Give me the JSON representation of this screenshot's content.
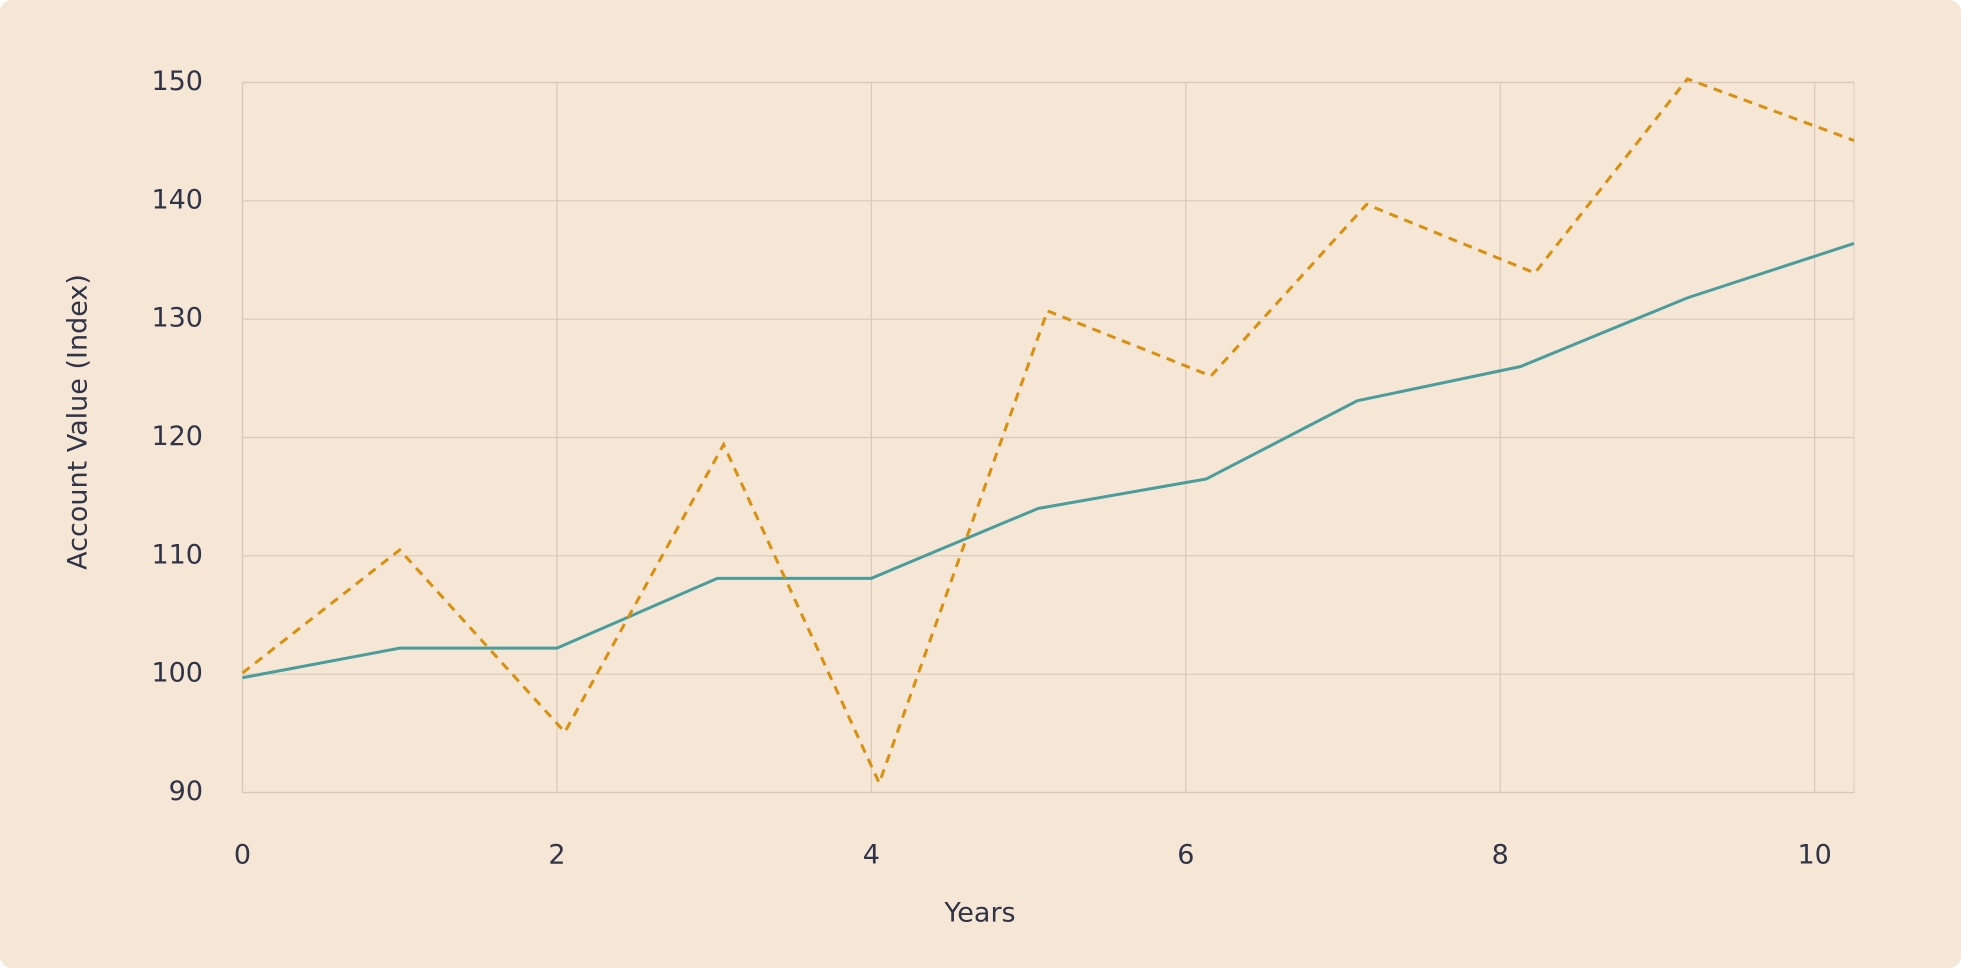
{
  "chart_data": {
    "type": "line",
    "x_label": "Years",
    "y_label": "Account Value (Index)",
    "xlim": [
      0,
      10.25
    ],
    "xticks": [
      0,
      2,
      4,
      6,
      8,
      10
    ],
    "ylim": [
      90,
      150
    ],
    "yticks": [
      90,
      100,
      110,
      120,
      130,
      140,
      150
    ],
    "grid": true,
    "series": [
      {
        "color": "#4a9d9c",
        "dash": false,
        "x": [
          0,
          1,
          2,
          3.02,
          4,
          5.06,
          6.13,
          7.09,
          8.13,
          9.19,
          10.25
        ],
        "values": [
          99.7,
          102.2,
          102.2,
          108.1,
          108.1,
          114.0,
          116.5,
          123.1,
          126.0,
          131.8,
          136.4
        ]
      },
      {
        "color": "#d9900f",
        "dash": true,
        "x": [
          0,
          1,
          2.05,
          3.06,
          4.05,
          5.12,
          6.16,
          7.15,
          8.22,
          9.19,
          10.25
        ],
        "values": [
          100.1,
          110.5,
          95.1,
          119.4,
          90.8,
          130.7,
          125.2,
          139.7,
          133.9,
          150.3,
          145.1
        ]
      }
    ]
  }
}
